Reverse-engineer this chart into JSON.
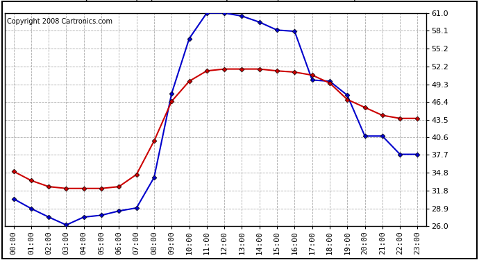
{
  "copyright": "Copyright 2008 Cartronics.com",
  "hours": [
    "00:00",
    "01:00",
    "02:00",
    "03:00",
    "04:00",
    "05:00",
    "06:00",
    "07:00",
    "08:00",
    "09:00",
    "10:00",
    "11:00",
    "12:00",
    "13:00",
    "14:00",
    "15:00",
    "16:00",
    "17:00",
    "18:00",
    "19:00",
    "20:00",
    "21:00",
    "22:00",
    "23:00"
  ],
  "temp": [
    35.0,
    33.5,
    32.5,
    32.2,
    32.2,
    32.2,
    32.5,
    34.5,
    40.0,
    46.5,
    49.8,
    51.5,
    51.8,
    51.8,
    51.8,
    51.5,
    51.3,
    50.8,
    49.5,
    46.8,
    45.5,
    44.2,
    43.7,
    43.7
  ],
  "thsw": [
    30.5,
    28.9,
    27.5,
    26.2,
    27.5,
    27.8,
    28.5,
    29.0,
    34.0,
    47.8,
    56.8,
    61.0,
    61.0,
    60.5,
    59.5,
    58.2,
    58.0,
    50.0,
    49.8,
    47.5,
    40.8,
    40.8,
    37.8,
    37.8
  ],
  "temp_color": "#cc0000",
  "thsw_color": "#0000cc",
  "bg_color": "#ffffff",
  "grid_color": "#aaaaaa",
  "yticks": [
    26.0,
    28.9,
    31.8,
    34.8,
    37.7,
    40.6,
    43.5,
    46.4,
    49.3,
    52.2,
    55.2,
    58.1,
    61.0
  ],
  "ylim": [
    26.0,
    61.0
  ],
  "title_fontsize": 11,
  "copyright_fontsize": 7,
  "tick_fontsize": 8
}
